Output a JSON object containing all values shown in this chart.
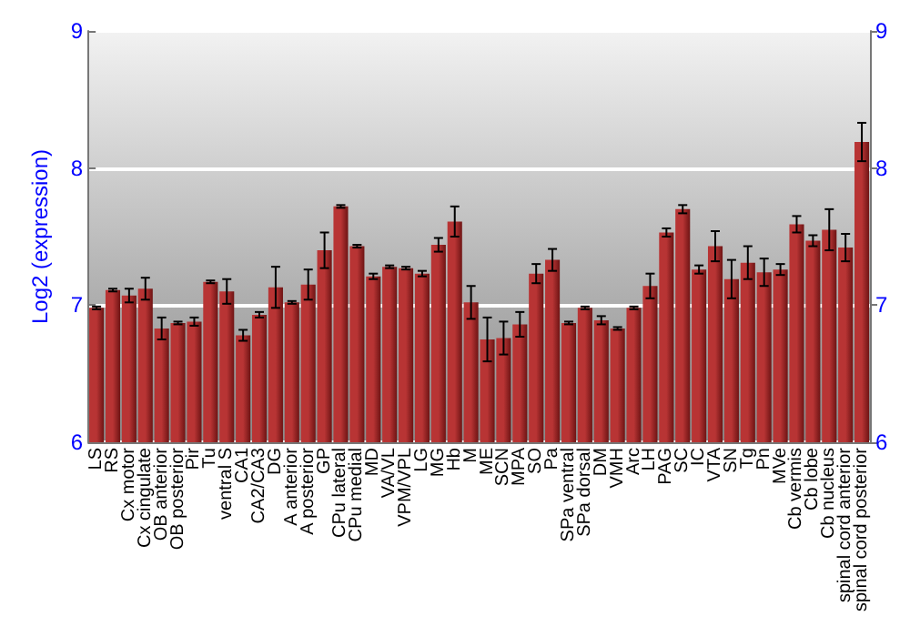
{
  "chart_data": {
    "type": "bar",
    "ylabel": "Log2 (expression)",
    "categories": [
      "LS",
      "RS",
      "Cx motor",
      "Cx cingulate",
      "OB anterior",
      "OB posterior",
      "Pir",
      "Tu",
      "ventral S",
      "CA1",
      "CA2/CA3",
      "DG",
      "A anterior",
      "A posterior",
      "GP",
      "CPu lateral",
      "CPu medial",
      "MD",
      "VA/VL",
      "VPM/VPL",
      "LG",
      "MG",
      "Hb",
      "M",
      "ME",
      "SCN",
      "MPA",
      "SO",
      "Pa",
      "SPa ventral",
      "SPa dorsal",
      "DM",
      "VMH",
      "Arc",
      "LH",
      "PAG",
      "SC",
      "IC",
      "VTA",
      "SN",
      "Tg",
      "Pn",
      "MVe",
      "Cb vermis",
      "Cb lobe",
      "Cb nucleus",
      "spinal cord anterior",
      "spinal cord posterior"
    ],
    "values": [
      6.98,
      7.11,
      7.07,
      7.12,
      6.83,
      6.87,
      6.88,
      7.17,
      7.1,
      6.78,
      6.93,
      7.13,
      7.02,
      7.15,
      7.4,
      7.72,
      7.43,
      7.21,
      7.28,
      7.27,
      7.23,
      7.44,
      7.61,
      7.02,
      6.75,
      6.76,
      6.86,
      7.23,
      7.33,
      6.87,
      6.98,
      6.89,
      6.83,
      6.98,
      7.14,
      7.53,
      7.7,
      7.26,
      7.43,
      7.19,
      7.31,
      7.24,
      7.26,
      7.59,
      7.47,
      7.55,
      7.42,
      8.19
    ],
    "errors": [
      0.01,
      0.01,
      0.05,
      0.08,
      0.08,
      0.01,
      0.03,
      0.01,
      0.09,
      0.04,
      0.02,
      0.15,
      0.01,
      0.11,
      0.13,
      0.01,
      0.01,
      0.02,
      0.01,
      0.01,
      0.02,
      0.05,
      0.11,
      0.12,
      0.16,
      0.12,
      0.09,
      0.07,
      0.08,
      0.01,
      0.01,
      0.03,
      0.01,
      0.01,
      0.09,
      0.03,
      0.03,
      0.03,
      0.11,
      0.14,
      0.12,
      0.1,
      0.04,
      0.06,
      0.04,
      0.15,
      0.1,
      0.14
    ],
    "color": "#b83434",
    "ylim": [
      6,
      9
    ],
    "yticks": [
      6,
      7,
      8,
      9
    ],
    "y2lim": [
      6,
      9
    ],
    "y2ticks": [
      6,
      7,
      8,
      9
    ],
    "grid": "y"
  }
}
